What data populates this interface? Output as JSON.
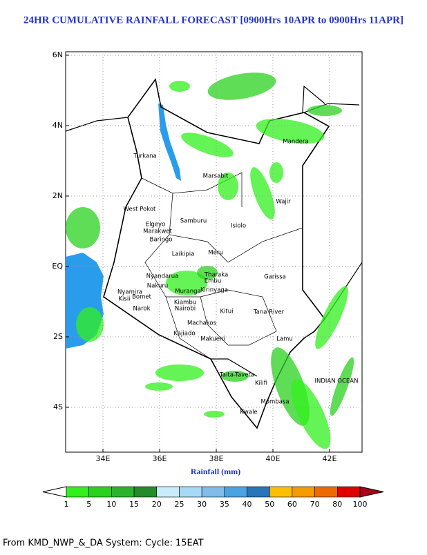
{
  "map": {
    "title": "24HR CUMULATIVE RAINFALL FORECAST [0900Hrs 10APR to 0900Hrs 11APR]",
    "x_label": "Rainfall (mm)",
    "lat_ticks": [
      {
        "value": 6,
        "label": "6N"
      },
      {
        "value": 4,
        "label": "4N"
      },
      {
        "value": 2,
        "label": "2N"
      },
      {
        "value": 0,
        "label": "EQ"
      },
      {
        "value": -2,
        "label": "2S"
      },
      {
        "value": -4,
        "label": "4S"
      }
    ],
    "lon_ticks": [
      {
        "value": 34,
        "label": "34E"
      },
      {
        "value": 36,
        "label": "36E"
      },
      {
        "value": 38,
        "label": "38E"
      },
      {
        "value": 40,
        "label": "40E"
      },
      {
        "value": 42,
        "label": "42E"
      }
    ],
    "places": [
      "Turkana",
      "Marsabit",
      "Mandera",
      "Wajir",
      "West Pokot",
      "Samburu",
      "Isiolo",
      "Elgeyo",
      "Marakwet",
      "Baringo",
      "Laikipia",
      "Meru",
      "Garissa",
      "Tharaka",
      "Embu",
      "Kirinyaga",
      "Nyandarua",
      "Nakuru",
      "Muranga",
      "Kiambu",
      "Nairobi",
      "Kitui",
      "Machakos",
      "Tana River",
      "Narok",
      "Kajiado",
      "Makueni",
      "Lamu",
      "Taita-Taveta",
      "Kilifi",
      "Mombasa",
      "Kwale",
      "Nyamira",
      "Kisii",
      "Bomet",
      "INDIAN OCEAN"
    ],
    "colorbar": {
      "levels": [
        1,
        5,
        10,
        15,
        20,
        25,
        30,
        35,
        40,
        50,
        60,
        70,
        80,
        100
      ],
      "colors": [
        "#ffffff",
        "#32f01e",
        "#2ad21e",
        "#2ab42e",
        "#238b2a",
        "#c9ecfb",
        "#a6d9f7",
        "#80bde9",
        "#4aa3e2",
        "#2a75b9",
        "#fac000",
        "#f59a00",
        "#ee6a00",
        "#e00000",
        "#a80018"
      ]
    },
    "footer": "From KMD_NWP_&_DA System: Cycle: 15EAT"
  }
}
